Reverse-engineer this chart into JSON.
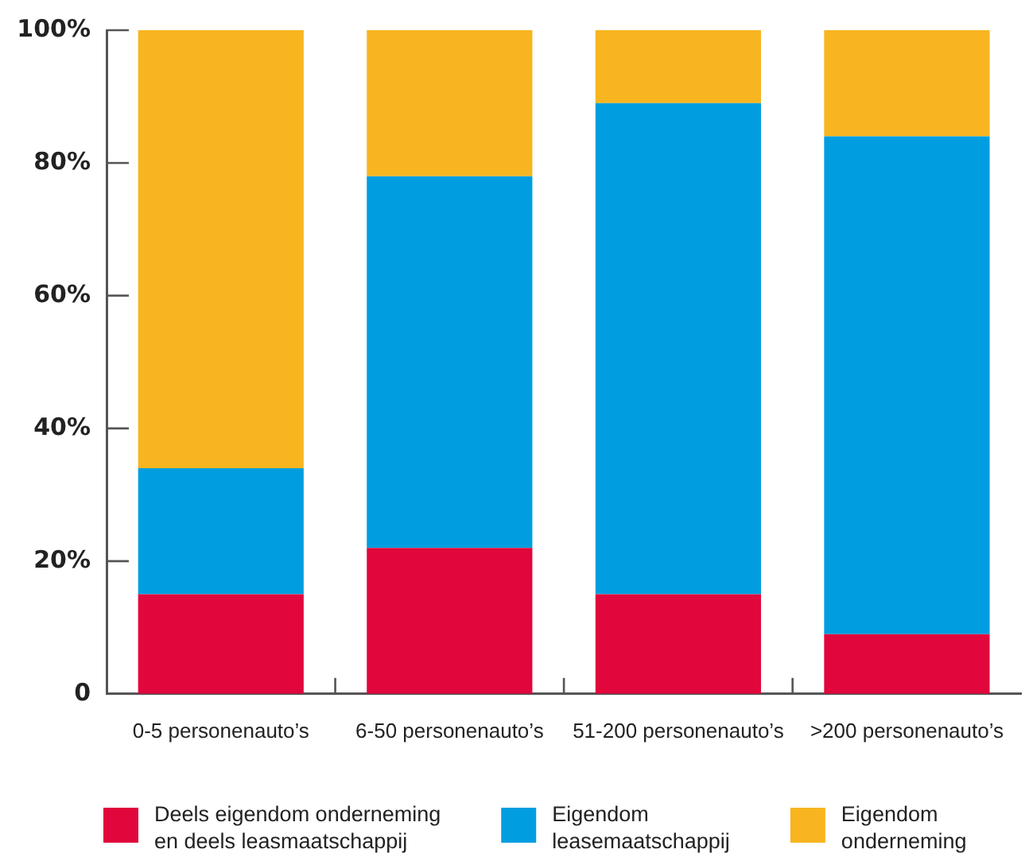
{
  "chart_data": {
    "type": "bar",
    "stacked": true,
    "categories": [
      "0-5 personenauto’s",
      "6-50 personenauto’s",
      "51-200 personenauto’s",
      ">200 personenauto’s"
    ],
    "series": [
      {
        "name": "Deels eigendom onderneming en deels leasmaatschappij",
        "color": "#e1063c",
        "values": [
          15,
          22,
          15,
          9
        ]
      },
      {
        "name": "Eigendom leasemaatschappij",
        "color": "#009ee0",
        "values": [
          19,
          56,
          74,
          75
        ]
      },
      {
        "name": "Eigendom onderneming",
        "color": "#f8b520",
        "values": [
          66,
          22,
          11,
          16
        ]
      }
    ],
    "ylim": [
      0,
      100
    ],
    "yticks": [
      0,
      {
        "value": 20,
        "label": "20%"
      },
      {
        "value": 40,
        "label": "40%"
      },
      {
        "value": 60,
        "label": "60%"
      },
      {
        "value": 80,
        "label": "80%"
      },
      {
        "value": 100,
        "label": "100%"
      }
    ],
    "grid": false,
    "legend": "bottom"
  }
}
